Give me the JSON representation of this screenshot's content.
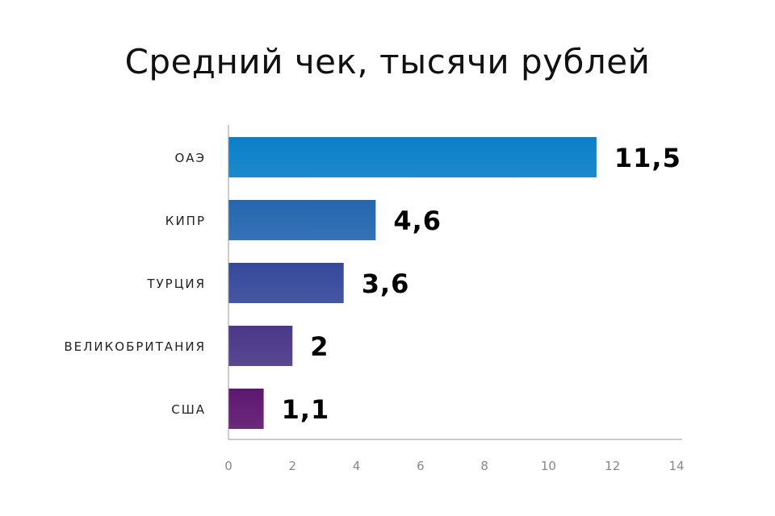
{
  "chart_data": {
    "type": "bar",
    "orientation": "horizontal",
    "title": "Средний чек, тысячи рублей",
    "categories": [
      "ОАЭ",
      "КИПР",
      "ТУРЦИЯ",
      "ВЕЛИКОБРИТАНИЯ",
      "США"
    ],
    "values": [
      11.5,
      4.6,
      3.6,
      2,
      1.1
    ],
    "value_labels": [
      "11,5",
      "4,6",
      "3,6",
      "2",
      "1,1"
    ],
    "xlim": [
      0,
      14
    ],
    "xticks": [
      0,
      2,
      4,
      6,
      8,
      10,
      12,
      14
    ],
    "xtick_labels": [
      "0",
      "2",
      "4",
      "6",
      "8",
      "10",
      "12",
      "14"
    ],
    "xlabel": "",
    "ylabel": "",
    "grid": false,
    "bar_colors": [
      "#0a7fc8",
      "#2466ae",
      "#35489a",
      "#4a3888",
      "#5e176f"
    ]
  }
}
